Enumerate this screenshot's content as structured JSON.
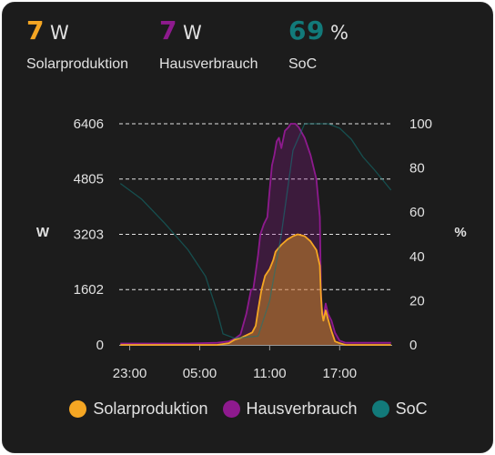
{
  "header": {
    "stats": [
      {
        "value": "7",
        "unit": "W",
        "label": "Solarproduktion",
        "color": "#f5a623"
      },
      {
        "value": "7",
        "unit": "W",
        "label": "Hausverbrauch",
        "color": "#8e1a8e"
      },
      {
        "value": "69",
        "unit": "%",
        "label": "SoC",
        "color": "#127a7a"
      }
    ]
  },
  "chart_data": {
    "type": "area",
    "x_ticks": [
      "23:00",
      "05:00",
      "11:00",
      "17:00"
    ],
    "x_tick_hours": [
      -1,
      5,
      11,
      17
    ],
    "x_range": [
      -1.9,
      21.5
    ],
    "left_axis": {
      "label": "W",
      "ticks": [
        0,
        1602,
        3203,
        4805,
        6406
      ],
      "range": [
        0,
        6406
      ]
    },
    "right_axis": {
      "label": "%",
      "ticks": [
        0,
        20,
        40,
        60,
        80,
        100
      ],
      "range": [
        0,
        100
      ]
    },
    "grid": "dashed horizontal",
    "legend_position": "bottom",
    "series": [
      {
        "name": "Solarproduktion",
        "axis": "left",
        "color": "#f5a623",
        "points": [
          [
            -1.8,
            0
          ],
          [
            4,
            0
          ],
          [
            6.5,
            0
          ],
          [
            7.5,
            50
          ],
          [
            8.0,
            150
          ],
          [
            8.5,
            200
          ],
          [
            9.0,
            280
          ],
          [
            9.5,
            360
          ],
          [
            9.8,
            550
          ],
          [
            10.0,
            1000
          ],
          [
            10.3,
            1600
          ],
          [
            10.6,
            2000
          ],
          [
            11.0,
            2200
          ],
          [
            11.3,
            2450
          ],
          [
            11.5,
            2700
          ],
          [
            12,
            2900
          ],
          [
            12.5,
            3050
          ],
          [
            13,
            3150
          ],
          [
            13.4,
            3203
          ],
          [
            14,
            3150
          ],
          [
            14.5,
            3000
          ],
          [
            15,
            2750
          ],
          [
            15.3,
            2300
          ],
          [
            15.4,
            1400
          ],
          [
            15.5,
            900
          ],
          [
            15.6,
            700
          ],
          [
            15.8,
            1000
          ],
          [
            16,
            750
          ],
          [
            16.3,
            400
          ],
          [
            16.6,
            100
          ],
          [
            17,
            50
          ],
          [
            17.5,
            0
          ],
          [
            21.4,
            0
          ]
        ]
      },
      {
        "name": "Hausverbrauch",
        "axis": "left",
        "color": "#8e1a8e",
        "points": [
          [
            -1.8,
            40
          ],
          [
            0,
            40
          ],
          [
            4,
            40
          ],
          [
            6.5,
            60
          ],
          [
            7.5,
            100
          ],
          [
            8.0,
            180
          ],
          [
            8.5,
            300
          ],
          [
            9.0,
            900
          ],
          [
            9.4,
            1600
          ],
          [
            9.6,
            1620
          ],
          [
            9.8,
            2100
          ],
          [
            10,
            2600
          ],
          [
            10.2,
            3200
          ],
          [
            10.5,
            3500
          ],
          [
            10.8,
            3700
          ],
          [
            11,
            4500
          ],
          [
            11.2,
            5200
          ],
          [
            11.4,
            5500
          ],
          [
            11.6,
            5900
          ],
          [
            11.8,
            6000
          ],
          [
            12,
            5700
          ],
          [
            12.3,
            6200
          ],
          [
            12.6,
            6300
          ],
          [
            12.8,
            6406
          ],
          [
            13.2,
            6406
          ],
          [
            13.5,
            6300
          ],
          [
            14,
            6000
          ],
          [
            14.5,
            5500
          ],
          [
            15,
            4800
          ],
          [
            15.3,
            3700
          ],
          [
            15.4,
            1500
          ],
          [
            15.5,
            900
          ],
          [
            15.6,
            800
          ],
          [
            15.8,
            1200
          ],
          [
            16,
            900
          ],
          [
            16.3,
            700
          ],
          [
            16.6,
            350
          ],
          [
            17,
            120
          ],
          [
            17.5,
            60
          ],
          [
            21.4,
            60
          ]
        ]
      },
      {
        "name": "SoC",
        "axis": "right",
        "color": "#127a7a",
        "points": [
          [
            -1.8,
            73
          ],
          [
            0,
            66
          ],
          [
            2,
            55
          ],
          [
            4,
            43
          ],
          [
            5.5,
            31
          ],
          [
            6.5,
            15
          ],
          [
            7,
            5
          ],
          [
            8,
            3
          ],
          [
            10,
            4
          ],
          [
            11,
            20
          ],
          [
            12,
            50
          ],
          [
            13,
            88
          ],
          [
            14,
            100
          ],
          [
            16,
            100
          ],
          [
            17,
            98
          ],
          [
            18,
            93
          ],
          [
            19,
            85
          ],
          [
            20,
            79
          ],
          [
            21.4,
            70
          ]
        ]
      }
    ]
  }
}
